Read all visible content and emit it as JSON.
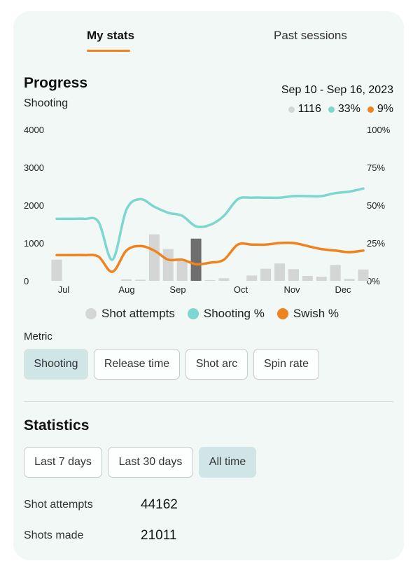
{
  "tabs": [
    {
      "label": "My stats",
      "active": true
    },
    {
      "label": "Past sessions",
      "active": false
    }
  ],
  "progress": {
    "title": "Progress",
    "subtitle": "Shooting",
    "date_range": "Sep 10 - Sep 16, 2023",
    "summary": [
      {
        "value": "1116",
        "color": "#d4d6d5"
      },
      {
        "value": "33%",
        "color": "#7dd7d0"
      },
      {
        "value": "9%",
        "color": "#f0831d"
      }
    ]
  },
  "chart_data": {
    "type": "bar+line",
    "x_ticks": [
      "Jul",
      "Aug",
      "Sep",
      "Oct",
      "Nov",
      "Dec"
    ],
    "y_left_ticks": [
      "4000",
      "3000",
      "2000",
      "1000",
      "0"
    ],
    "y_right_ticks": [
      "100%",
      "75%",
      "50%",
      "25%",
      "0%"
    ],
    "y_left_range": [
      0,
      4000
    ],
    "y_right_range": [
      0,
      100
    ],
    "bars": {
      "name": "Shot attempts",
      "color": "#d4d6d5",
      "highlight_color": "#6e6e6e",
      "values": [
        560,
        0,
        0,
        0,
        0,
        40,
        30,
        1230,
        840,
        530,
        1116,
        20,
        70,
        0,
        140,
        320,
        460,
        310,
        130,
        110,
        420,
        50,
        300
      ],
      "highlight_index": 10
    },
    "series": [
      {
        "name": "Shooting %",
        "color": "#7dd7d0",
        "values": [
          41,
          41,
          41,
          39,
          14,
          47,
          54,
          49,
          45,
          43,
          36,
          37,
          43,
          54,
          55,
          55,
          55,
          56,
          56,
          56,
          58,
          59,
          61
        ]
      },
      {
        "name": "Swish %",
        "color": "#f0831d",
        "values": [
          17,
          17,
          17,
          16,
          6,
          20,
          23,
          20,
          14,
          14,
          11,
          12,
          14,
          24,
          24,
          24,
          25,
          25,
          23,
          21,
          20,
          19,
          20
        ]
      }
    ],
    "legend": [
      "Shot attempts",
      "Shooting %",
      "Swish %"
    ],
    "legend_position": "bottom"
  },
  "metric": {
    "label": "Metric",
    "options": [
      {
        "label": "Shooting",
        "selected": true
      },
      {
        "label": "Release time",
        "selected": false
      },
      {
        "label": "Shot arc",
        "selected": false
      },
      {
        "label": "Spin rate",
        "selected": false
      }
    ]
  },
  "statistics": {
    "title": "Statistics",
    "ranges": [
      {
        "label": "Last 7 days",
        "selected": false
      },
      {
        "label": "Last 30 days",
        "selected": false
      },
      {
        "label": "All time",
        "selected": true
      }
    ],
    "rows": [
      {
        "label": "Shot attempts",
        "value": "44162"
      },
      {
        "label": "Shots made",
        "value": "21011"
      }
    ]
  }
}
